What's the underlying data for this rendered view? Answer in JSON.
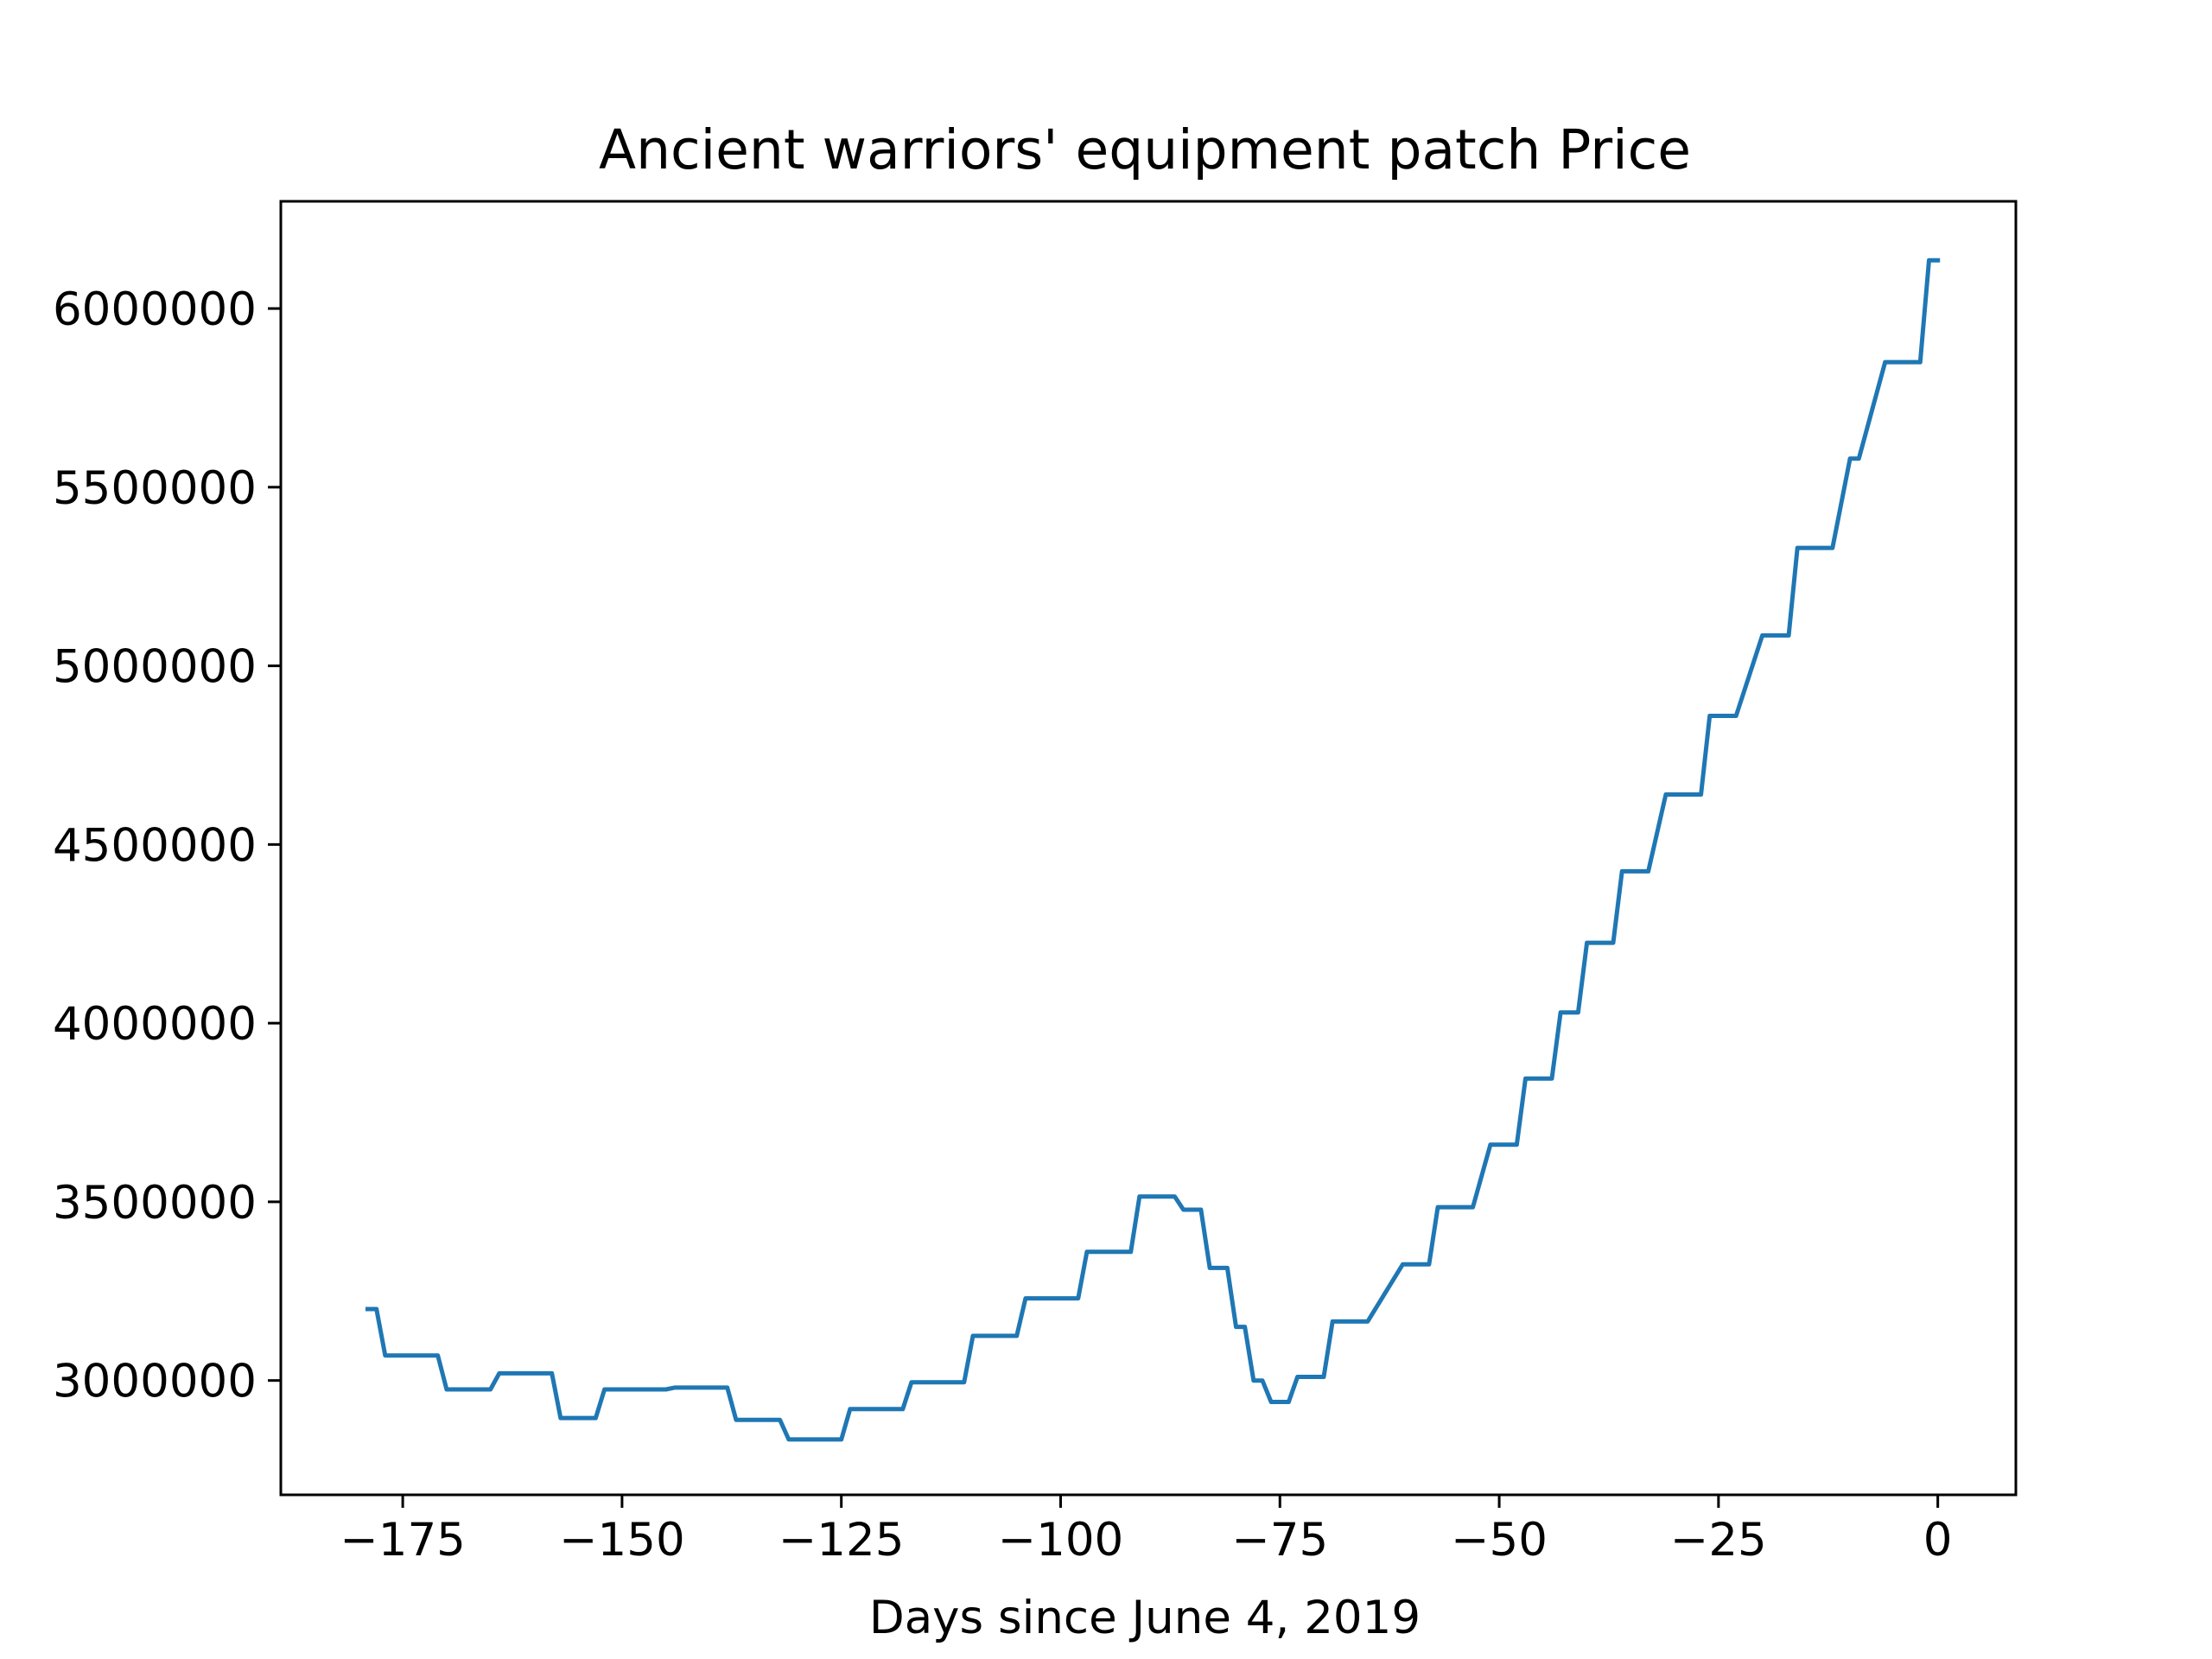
{
  "chart_data": {
    "type": "line",
    "title": "Ancient warriors' equipment patch Price",
    "xlabel": "Days since June 4, 2019",
    "ylabel": "",
    "xlim": [
      -188.9,
      8.9
    ],
    "ylim": [
      2680000,
      6300000
    ],
    "xticks": [
      -175,
      -150,
      -125,
      -100,
      -75,
      -50,
      -25,
      0
    ],
    "xtick_labels": [
      "−175",
      "−150",
      "−125",
      "−100",
      "−75",
      "−50",
      "−25",
      "0"
    ],
    "yticks": [
      3000000,
      3500000,
      4000000,
      4500000,
      5000000,
      5500000,
      6000000
    ],
    "ytick_labels": [
      "3000000",
      "3500000",
      "4000000",
      "4500000",
      "5000000",
      "5500000",
      "6000000"
    ],
    "grid": false,
    "series": [
      {
        "name": "",
        "color": "#1f77b4",
        "x": [
          -179,
          -178,
          -177,
          -171,
          -170,
          -165,
          -164,
          -158,
          -157,
          -153,
          -152,
          -145,
          -144,
          -138,
          -137,
          -132,
          -131,
          -125,
          -124,
          -118,
          -117,
          -111,
          -110,
          -105,
          -104,
          -98,
          -97,
          -92,
          -91,
          -87,
          -86,
          -85,
          -84,
          -83,
          -82,
          -81,
          -80,
          -79,
          -78,
          -77,
          -76,
          -74,
          -73,
          -70,
          -69,
          -66,
          -65,
          -61,
          -60,
          -58,
          -57,
          -54,
          -53,
          -51,
          -50,
          -48,
          -47,
          -44,
          -43,
          -41,
          -40,
          -37,
          -36,
          -34,
          -33,
          -31,
          -30,
          -27,
          -26,
          -24,
          -23,
          -20,
          -19,
          -17,
          -16,
          -13,
          -12,
          -10,
          -9,
          -6,
          -5,
          -2,
          -1,
          0
        ],
        "y": [
          3200000,
          3200000,
          3070000,
          3070000,
          2975000,
          2975000,
          3020000,
          3020000,
          2895000,
          2895000,
          2975000,
          2975000,
          2980000,
          2980000,
          2890000,
          2890000,
          2835000,
          2835000,
          2920000,
          2920000,
          2995000,
          2995000,
          3125000,
          3125000,
          3230000,
          3230000,
          3360000,
          3360000,
          3515000,
          3515000,
          3478000,
          3478000,
          3478000,
          3315000,
          3315000,
          3315000,
          3150000,
          3150000,
          3000000,
          3000000,
          2940000,
          2940000,
          3010000,
          3010000,
          3165000,
          3165000,
          3165000,
          3325000,
          3325000,
          3325000,
          3485000,
          3485000,
          3485000,
          3660000,
          3660000,
          3660000,
          3845000,
          3845000,
          4030000,
          4030000,
          4225000,
          4225000,
          4425000,
          4425000,
          4425000,
          4640000,
          4640000,
          4640000,
          4860000,
          4860000,
          4860000,
          5085000,
          5085000,
          5085000,
          5330000,
          5330000,
          5330000,
          5580000,
          5580000,
          5850000,
          5850000,
          5850000,
          6135000,
          6135000
        ]
      }
    ]
  }
}
